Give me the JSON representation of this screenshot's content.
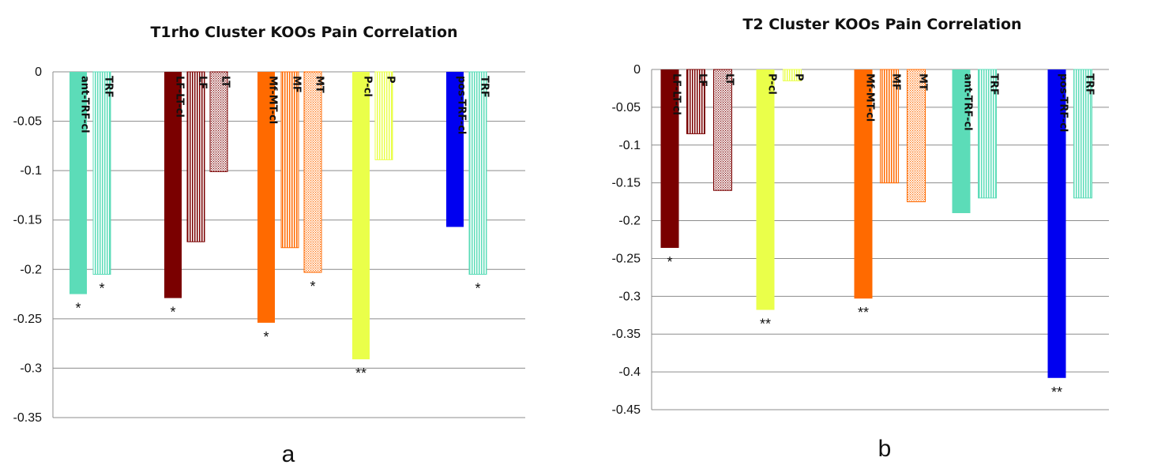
{
  "chart_data": [
    {
      "type": "bar",
      "panel": "a",
      "title": "T1rho Cluster KOOs Pain Correlation",
      "ylim": [
        -0.35,
        0
      ],
      "yticks": [
        "0",
        "-0.05",
        "-0.1",
        "-0.15",
        "-0.2",
        "-0.25",
        "-0.3",
        "-0.35"
      ],
      "grid": true,
      "bars": [
        {
          "label": "ant-TRF-cl",
          "value": -0.225,
          "color": "#5cdcb8",
          "pattern": "solid",
          "significance": "*"
        },
        {
          "label": "TRF",
          "value": -0.205,
          "color": "#5cdcb8",
          "pattern": "vlines",
          "significance": "*"
        },
        {
          "label": "LF-LT-cl",
          "value": -0.229,
          "color": "#7a0000",
          "pattern": "solid",
          "significance": "*"
        },
        {
          "label": "LF",
          "value": -0.172,
          "color": "#7a0000",
          "pattern": "vlines",
          "significance": ""
        },
        {
          "label": "LT",
          "value": -0.101,
          "color": "#7a0000",
          "pattern": "dots",
          "significance": ""
        },
        {
          "label": "Mf-MT-cl",
          "value": -0.254,
          "color": "#ff6a00",
          "pattern": "solid",
          "significance": "*"
        },
        {
          "label": "MF",
          "value": -0.178,
          "color": "#ff6a00",
          "pattern": "vlines",
          "significance": ""
        },
        {
          "label": "MT",
          "value": -0.203,
          "color": "#ff6a00",
          "pattern": "dots",
          "significance": "*"
        },
        {
          "label": "P-cl",
          "value": -0.291,
          "color": "#eaff4a",
          "pattern": "solid",
          "significance": "**"
        },
        {
          "label": "P",
          "value": -0.089,
          "color": "#eaff4a",
          "pattern": "vlines",
          "significance": ""
        },
        {
          "label": "pos-TRF-cl",
          "value": -0.157,
          "color": "#0000f0",
          "pattern": "solid",
          "significance": ""
        },
        {
          "label": "TRF",
          "value": -0.205,
          "color": "#5cdcb8",
          "pattern": "vlines",
          "significance": "*"
        }
      ]
    },
    {
      "type": "bar",
      "panel": "b",
      "title": "T2 Cluster KOOs Pain Correlation",
      "ylim": [
        -0.45,
        0
      ],
      "yticks": [
        "0",
        "-0.05",
        "-0.1",
        "-0.15",
        "-0.2",
        "-0.25",
        "-0.3",
        "-0.35",
        "-0.4",
        "-0.45"
      ],
      "grid": true,
      "bars": [
        {
          "label": "LF-LT-cl",
          "value": -0.236,
          "color": "#7a0000",
          "pattern": "solid",
          "significance": "*"
        },
        {
          "label": "LF",
          "value": -0.085,
          "color": "#7a0000",
          "pattern": "vlines",
          "significance": ""
        },
        {
          "label": "LT",
          "value": -0.16,
          "color": "#7a0000",
          "pattern": "dots",
          "significance": ""
        },
        {
          "label": "P-cl",
          "value": -0.318,
          "color": "#eaff4a",
          "pattern": "solid",
          "significance": "**"
        },
        {
          "label": "P",
          "value": -0.015,
          "color": "#eaff4a",
          "pattern": "vlines",
          "significance": ""
        },
        {
          "label": "Mf-MT-cl",
          "value": -0.303,
          "color": "#ff6a00",
          "pattern": "solid",
          "significance": "**"
        },
        {
          "label": "MF",
          "value": -0.15,
          "color": "#ff6a00",
          "pattern": "vlines",
          "significance": ""
        },
        {
          "label": "MT",
          "value": -0.175,
          "color": "#ff6a00",
          "pattern": "dots",
          "significance": ""
        },
        {
          "label": "ant-TRF-cl",
          "value": -0.19,
          "color": "#5cdcb8",
          "pattern": "solid",
          "significance": ""
        },
        {
          "label": "TRF",
          "value": -0.17,
          "color": "#5cdcb8",
          "pattern": "vlines",
          "significance": ""
        },
        {
          "label": "pos-TRF-cl",
          "value": -0.408,
          "color": "#0000f0",
          "pattern": "solid",
          "significance": "**"
        },
        {
          "label": "TRF",
          "value": -0.17,
          "color": "#5cdcb8",
          "pattern": "vlines",
          "significance": ""
        }
      ]
    }
  ]
}
